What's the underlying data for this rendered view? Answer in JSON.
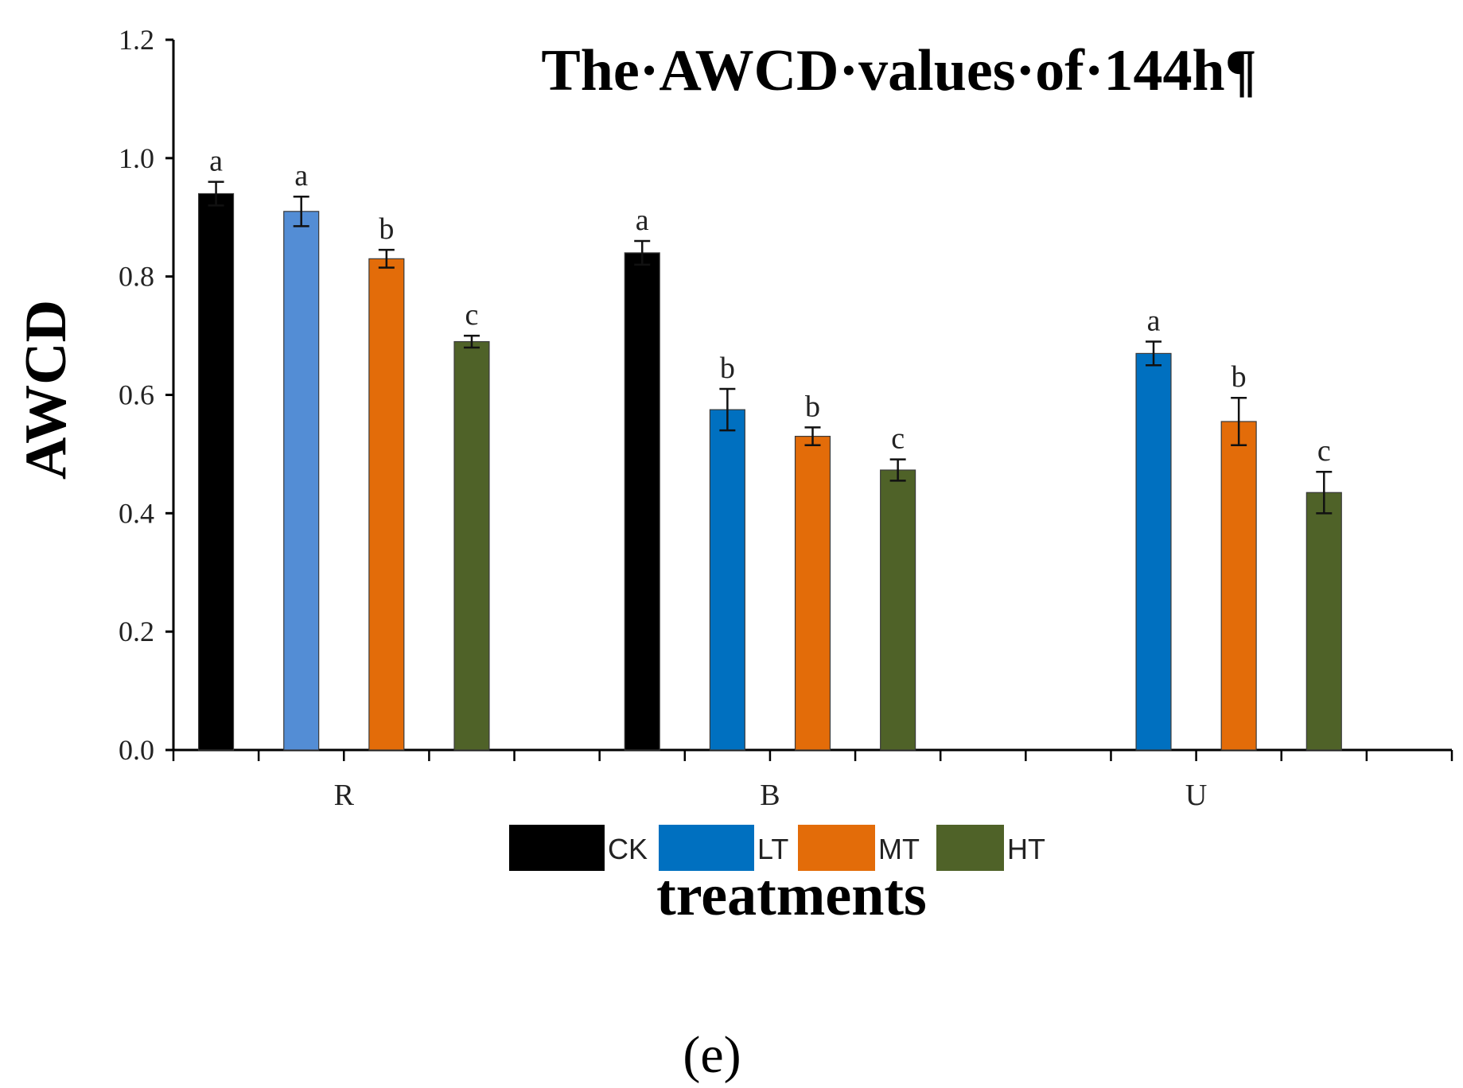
{
  "chart_data": {
    "type": "bar",
    "title": "The·AWCD·values·of·144h¶",
    "xlabel": "treatments",
    "ylabel": "AWCD",
    "ylim": [
      0,
      1.2
    ],
    "yticks": [
      "0.0",
      "0.2",
      "0.4",
      "0.6",
      "0.8",
      "1.0",
      "1.2"
    ],
    "categories": [
      "R",
      "B",
      "U"
    ],
    "series": [
      {
        "name": "CK",
        "color": "#000000",
        "values": [
          0.94,
          0.84,
          null
        ],
        "errors": [
          0.02,
          0.02,
          null
        ],
        "letters": [
          "a",
          "a",
          null
        ]
      },
      {
        "name": "LT",
        "color": "#0070c0",
        "values": [
          0.91,
          0.575,
          0.67
        ],
        "errors": [
          0.025,
          0.035,
          0.02
        ],
        "letters": [
          "a",
          "b",
          "a"
        ]
      },
      {
        "name": "MT",
        "color": "#e36c09",
        "values": [
          0.83,
          0.53,
          0.555
        ],
        "errors": [
          0.015,
          0.015,
          0.04
        ],
        "letters": [
          "b",
          "b",
          "b"
        ]
      },
      {
        "name": "HT",
        "color": "#4f6228",
        "values": [
          0.69,
          0.473,
          0.435
        ],
        "errors": [
          0.01,
          0.018,
          0.035
        ],
        "letters": [
          "c",
          "c",
          "c"
        ]
      }
    ],
    "bar_overrides": {
      "R-LT": "#538dd5"
    },
    "legend_position": "bottom-center"
  },
  "caption": "(e)"
}
